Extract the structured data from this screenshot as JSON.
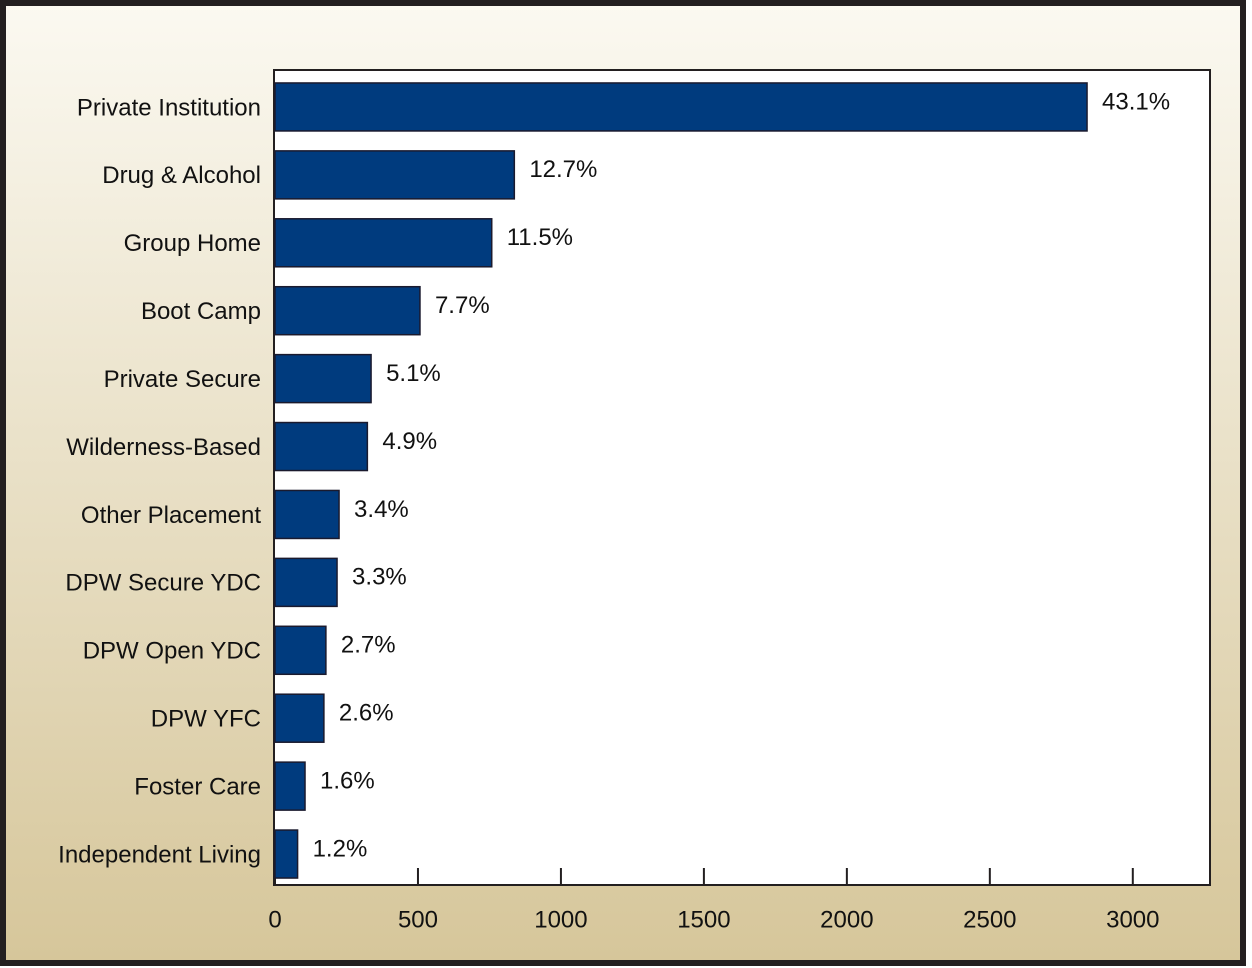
{
  "chart_data": {
    "type": "barh",
    "categories": [
      "Private Institution",
      "Drug & Alcohol",
      "Group Home",
      "Boot Camp",
      "Private Secure",
      "Wilderness-Based",
      "Other Placement",
      "DPW Secure YDC",
      "DPW Open YDC",
      "DPW YFC",
      "Foster Care",
      "Independent Living"
    ],
    "values": [
      2840,
      837,
      758,
      507,
      336,
      323,
      224,
      217,
      178,
      171,
      105,
      79
    ],
    "share_labels": [
      "43.1%",
      "12.7%",
      "11.5%",
      "7.7%",
      "5.1%",
      "4.9%",
      "3.4%",
      "3.3%",
      "2.7%",
      "2.6%",
      "1.6%",
      "1.2%"
    ],
    "color": "#003b7e",
    "xlim": [
      0,
      3270
    ],
    "xticks": [
      0,
      500,
      1000,
      1500,
      2000,
      2500,
      3000
    ],
    "grid": false
  }
}
